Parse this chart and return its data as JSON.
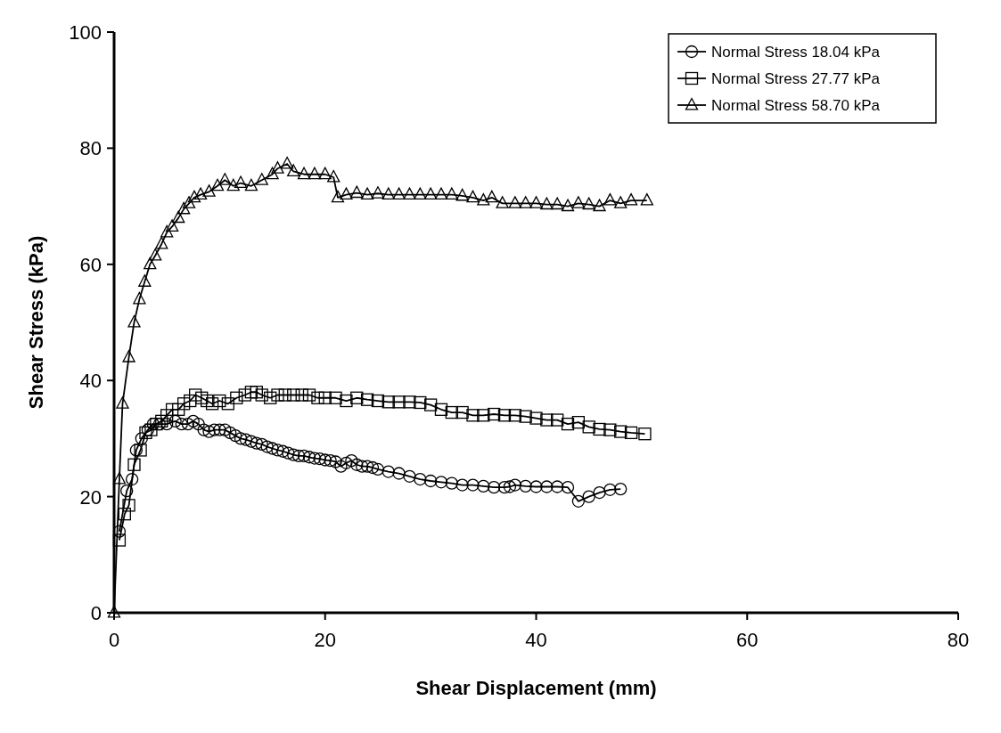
{
  "chart_data": {
    "type": "line",
    "xlabel": "Shear Displacement (mm)",
    "ylabel": "Shear Stress (kPa)",
    "xlim": [
      0,
      80
    ],
    "xticks": [
      0,
      20,
      40,
      60,
      80
    ],
    "ylim": [
      0,
      100
    ],
    "yticks": [
      0,
      20,
      40,
      60,
      80,
      100
    ],
    "grid": false,
    "legend": "top right",
    "line_style": "solid",
    "series": [
      {
        "name": "Normal Stress 18.04 kPa",
        "color": "#000000",
        "marker": "circle",
        "x": [
          0.5,
          1.2,
          1.7,
          2.1,
          2.6,
          3.2,
          3.7,
          4.3,
          5,
          5.8,
          6.4,
          7,
          7.5,
          8,
          8.5,
          9,
          9.5,
          10,
          10.5,
          11,
          11.5,
          12,
          12.5,
          13,
          13.5,
          14,
          14.5,
          15,
          15.5,
          16,
          16.5,
          17,
          17.5,
          18,
          18.5,
          19,
          19.5,
          20,
          20.5,
          21,
          21.5,
          22,
          22.5,
          23,
          23.5,
          24,
          24.5,
          25,
          26,
          27,
          28,
          29,
          30,
          31,
          32,
          33,
          34,
          35,
          36,
          37,
          37.5,
          38,
          39,
          40,
          41,
          42,
          43,
          44,
          45,
          46,
          47,
          48
        ],
        "values": [
          14,
          21,
          23,
          28,
          30,
          31.5,
          32.5,
          32.5,
          32.5,
          33,
          32.5,
          32.5,
          33,
          32.5,
          31.5,
          31.2,
          31.5,
          31.5,
          31.5,
          31,
          30.5,
          30,
          29.8,
          29.5,
          29.2,
          29,
          28.6,
          28.3,
          28,
          27.8,
          27.5,
          27.2,
          27,
          27,
          26.8,
          26.6,
          26.5,
          26.3,
          26.2,
          26,
          25.2,
          25.8,
          26.2,
          25.5,
          25.2,
          25.2,
          25,
          24.7,
          24.3,
          24,
          23.5,
          23,
          22.7,
          22.5,
          22.3,
          22,
          22,
          21.8,
          21.6,
          21.6,
          21.7,
          22,
          21.8,
          21.7,
          21.7,
          21.7,
          21.6,
          19.2,
          20,
          20.7,
          21.2,
          21.3
        ]
      },
      {
        "name": "Normal Stress 27.77 kPa",
        "color": "#000000",
        "marker": "square",
        "x": [
          0.5,
          1,
          1.4,
          1.9,
          2.5,
          3,
          3.5,
          4,
          4.5,
          5,
          5.5,
          6.1,
          6.6,
          7.2,
          7.7,
          8.3,
          8.8,
          9.3,
          10,
          10.8,
          11.6,
          12.4,
          13,
          13.5,
          14,
          14.8,
          15.5,
          16.2,
          17,
          17.8,
          18.5,
          19.3,
          20,
          21,
          22,
          23,
          24,
          25,
          26,
          27,
          28,
          29,
          30,
          31,
          32,
          33,
          34,
          35,
          36,
          37,
          38,
          39,
          40,
          41,
          42,
          43,
          44,
          45,
          46,
          47,
          48,
          49,
          50.3
        ],
        "values": [
          12.5,
          17,
          18.5,
          25.5,
          28,
          31,
          31.5,
          32.5,
          33,
          34,
          35,
          35,
          36,
          36.5,
          37.5,
          37,
          36.5,
          36,
          36.5,
          36,
          37,
          37.5,
          38,
          38,
          37.5,
          37,
          37.5,
          37.5,
          37.5,
          37.5,
          37.5,
          37,
          37,
          37,
          36.5,
          37,
          36.7,
          36.5,
          36.3,
          36.3,
          36.3,
          36.2,
          35.8,
          35,
          34.5,
          34.5,
          34,
          34,
          34.2,
          34,
          34,
          33.8,
          33.5,
          33.2,
          33.2,
          32.5,
          32.8,
          32,
          31.6,
          31.5,
          31.2,
          31,
          30.8
        ]
      },
      {
        "name": "Normal Stress 58.70 kPa",
        "color": "#000000",
        "marker": "triangle",
        "x": [
          0,
          0.5,
          0.8,
          1.4,
          1.9,
          2.4,
          2.9,
          3.4,
          3.9,
          4.5,
          5,
          5.5,
          6.1,
          6.6,
          7.1,
          7.6,
          8.2,
          9,
          9.8,
          10.5,
          11.3,
          12,
          13,
          14,
          15,
          15.5,
          16.4,
          17,
          18,
          19,
          20,
          20.8,
          21.2,
          22,
          23,
          24,
          25,
          26,
          27,
          28,
          29,
          30,
          31,
          32,
          33,
          34,
          35,
          35.8,
          36.8,
          38,
          39,
          40,
          41,
          42,
          43,
          44,
          45,
          46,
          47,
          48,
          49,
          50.5
        ],
        "values": [
          0,
          23,
          36,
          44,
          50,
          54,
          57,
          60,
          61.5,
          63.5,
          65.5,
          66.5,
          68,
          69.5,
          70.5,
          71.5,
          72,
          72.5,
          73.5,
          74.5,
          73.5,
          74,
          73.5,
          74.5,
          75.5,
          76.5,
          77.3,
          76,
          75.5,
          75.5,
          75.5,
          75,
          71.5,
          72,
          72.3,
          72,
          72.2,
          72,
          72,
          72,
          72,
          72,
          72,
          72,
          71.8,
          71.5,
          71,
          71.5,
          70.5,
          70.5,
          70.5,
          70.5,
          70.3,
          70.3,
          70,
          70.5,
          70.3,
          70,
          71,
          70.5,
          71,
          71
        ]
      }
    ]
  }
}
